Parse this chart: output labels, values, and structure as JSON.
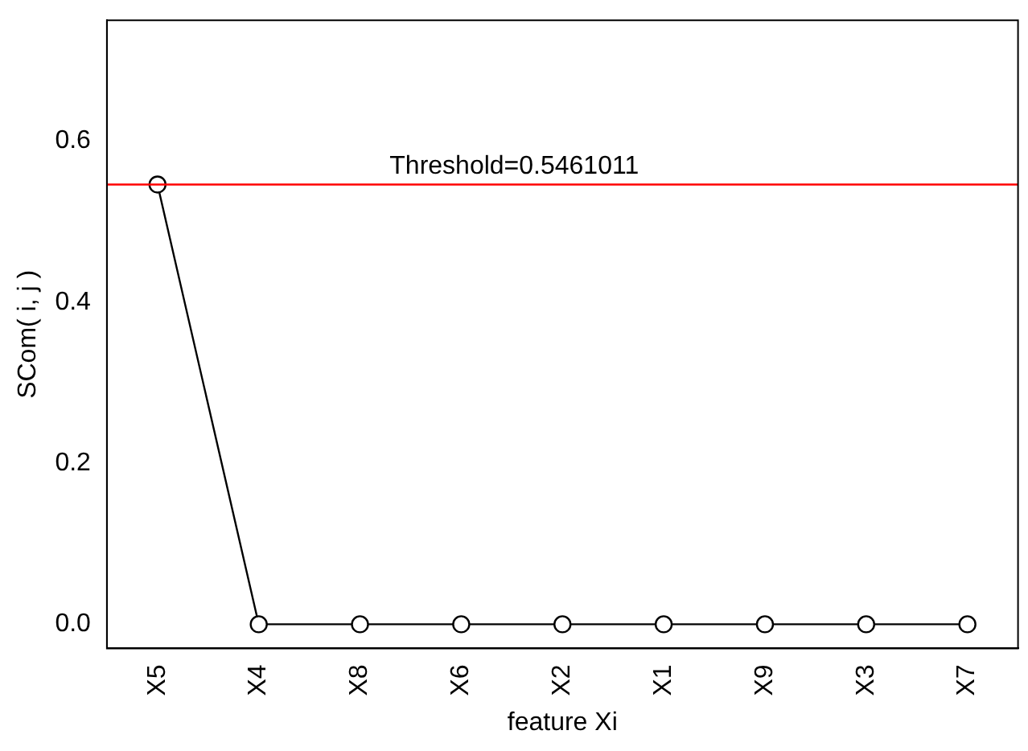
{
  "chart_data": {
    "type": "line",
    "xlabel": "feature Xi",
    "ylabel": "SCom( i, j )",
    "categories": [
      "X5",
      "X4",
      "X8",
      "X6",
      "X2",
      "X1",
      "X9",
      "X3",
      "X7"
    ],
    "series": [
      {
        "color": "#000000",
        "values": [
          0.5461011,
          0,
          0,
          0,
          0,
          0,
          0,
          0,
          0
        ]
      }
    ],
    "ylim": [
      -0.03,
      0.75
    ],
    "yticks": [
      {
        "value": 0,
        "label": "0.0"
      },
      {
        "value": 0.2,
        "label": "0.2"
      },
      {
        "value": 0.4,
        "label": "0.4"
      },
      {
        "value": 0.6,
        "label": "0.6"
      }
    ],
    "ref_lines": [
      {
        "axis": "y",
        "value": 0.5461011,
        "label": "Threshold=0.5461011",
        "color": "#ff0000"
      }
    ],
    "marker": "circle",
    "line_style": "solid",
    "grid": false,
    "legend": false
  }
}
